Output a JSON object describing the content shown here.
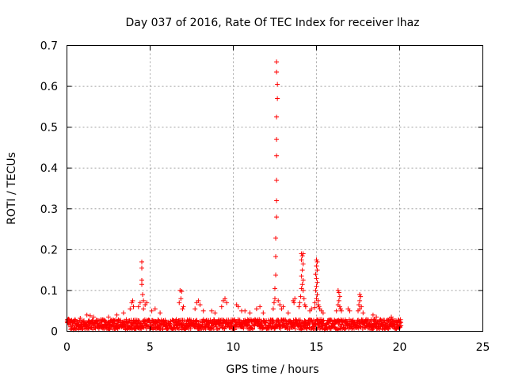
{
  "chart_data": {
    "type": "scatter",
    "title": "Day 037 of 2016, Rate Of TEC Index for receiver lhaz",
    "xlabel": "GPS time / hours",
    "ylabel": "ROTI / TECUs",
    "xlim": [
      0,
      25
    ],
    "ylim": [
      0,
      0.7
    ],
    "x_ticks": [
      "0",
      "5",
      "10",
      "15",
      "20",
      "25"
    ],
    "y_ticks": [
      "0",
      "0.1",
      "0.2",
      "0.3",
      "0.4",
      "0.5",
      "0.6",
      "0.7"
    ],
    "grid": true,
    "marker": "+",
    "color": "#ff0000",
    "background_band": {
      "x_range": [
        0,
        20.1
      ],
      "y_min": 0,
      "y_typical": 0.025,
      "description": "dense continuous band of points between 0 and about 0.03 TECUs"
    },
    "points": [
      {
        "x": 4.5,
        "y": 0.17
      },
      {
        "x": 4.5,
        "y": 0.155
      },
      {
        "x": 4.5,
        "y": 0.125
      },
      {
        "x": 4.5,
        "y": 0.115
      },
      {
        "x": 4.55,
        "y": 0.09
      },
      {
        "x": 4.6,
        "y": 0.075
      },
      {
        "x": 4.4,
        "y": 0.07
      },
      {
        "x": 4.7,
        "y": 0.065
      },
      {
        "x": 4.8,
        "y": 0.07
      },
      {
        "x": 4.3,
        "y": 0.06
      },
      {
        "x": 4.6,
        "y": 0.055
      },
      {
        "x": 6.8,
        "y": 0.1
      },
      {
        "x": 6.9,
        "y": 0.098
      },
      {
        "x": 6.85,
        "y": 0.08
      },
      {
        "x": 6.75,
        "y": 0.07
      },
      {
        "x": 7.0,
        "y": 0.06
      },
      {
        "x": 6.95,
        "y": 0.055
      },
      {
        "x": 3.9,
        "y": 0.07
      },
      {
        "x": 3.95,
        "y": 0.075
      },
      {
        "x": 4.0,
        "y": 0.06
      },
      {
        "x": 3.8,
        "y": 0.055
      },
      {
        "x": 5.1,
        "y": 0.05
      },
      {
        "x": 5.3,
        "y": 0.055
      },
      {
        "x": 5.6,
        "y": 0.045
      },
      {
        "x": 1.2,
        "y": 0.04
      },
      {
        "x": 1.4,
        "y": 0.038
      },
      {
        "x": 1.6,
        "y": 0.035
      },
      {
        "x": 0.1,
        "y": 0.03
      },
      {
        "x": 0.8,
        "y": 0.032
      },
      {
        "x": 2.5,
        "y": 0.035
      },
      {
        "x": 3.0,
        "y": 0.04
      },
      {
        "x": 3.4,
        "y": 0.045
      },
      {
        "x": 7.8,
        "y": 0.07
      },
      {
        "x": 7.9,
        "y": 0.075
      },
      {
        "x": 8.0,
        "y": 0.065
      },
      {
        "x": 7.7,
        "y": 0.055
      },
      {
        "x": 8.2,
        "y": 0.05
      },
      {
        "x": 8.7,
        "y": 0.05
      },
      {
        "x": 8.9,
        "y": 0.045
      },
      {
        "x": 9.4,
        "y": 0.075
      },
      {
        "x": 9.5,
        "y": 0.08
      },
      {
        "x": 9.6,
        "y": 0.07
      },
      {
        "x": 9.3,
        "y": 0.06
      },
      {
        "x": 10.2,
        "y": 0.065
      },
      {
        "x": 10.3,
        "y": 0.06
      },
      {
        "x": 10.5,
        "y": 0.05
      },
      {
        "x": 10.7,
        "y": 0.05
      },
      {
        "x": 11.0,
        "y": 0.045
      },
      {
        "x": 11.4,
        "y": 0.055
      },
      {
        "x": 11.6,
        "y": 0.06
      },
      {
        "x": 11.8,
        "y": 0.045
      },
      {
        "x": 12.6,
        "y": 0.66
      },
      {
        "x": 12.6,
        "y": 0.635
      },
      {
        "x": 12.65,
        "y": 0.605
      },
      {
        "x": 12.65,
        "y": 0.57
      },
      {
        "x": 12.6,
        "y": 0.525
      },
      {
        "x": 12.6,
        "y": 0.47
      },
      {
        "x": 12.6,
        "y": 0.43
      },
      {
        "x": 12.6,
        "y": 0.37
      },
      {
        "x": 12.6,
        "y": 0.32
      },
      {
        "x": 12.6,
        "y": 0.28
      },
      {
        "x": 12.55,
        "y": 0.228
      },
      {
        "x": 12.55,
        "y": 0.183
      },
      {
        "x": 12.55,
        "y": 0.138
      },
      {
        "x": 12.5,
        "y": 0.105
      },
      {
        "x": 12.5,
        "y": 0.08
      },
      {
        "x": 12.45,
        "y": 0.07
      },
      {
        "x": 12.7,
        "y": 0.075
      },
      {
        "x": 12.8,
        "y": 0.065
      },
      {
        "x": 12.4,
        "y": 0.055
      },
      {
        "x": 12.9,
        "y": 0.055
      },
      {
        "x": 13.0,
        "y": 0.06
      },
      {
        "x": 13.3,
        "y": 0.045
      },
      {
        "x": 13.6,
        "y": 0.075
      },
      {
        "x": 13.7,
        "y": 0.08
      },
      {
        "x": 13.65,
        "y": 0.07
      },
      {
        "x": 14.1,
        "y": 0.19
      },
      {
        "x": 14.15,
        "y": 0.185
      },
      {
        "x": 14.2,
        "y": 0.19
      },
      {
        "x": 14.1,
        "y": 0.175
      },
      {
        "x": 14.2,
        "y": 0.165
      },
      {
        "x": 14.15,
        "y": 0.15
      },
      {
        "x": 14.1,
        "y": 0.135
      },
      {
        "x": 14.2,
        "y": 0.125
      },
      {
        "x": 14.15,
        "y": 0.115
      },
      {
        "x": 14.1,
        "y": 0.105
      },
      {
        "x": 14.2,
        "y": 0.1
      },
      {
        "x": 14.05,
        "y": 0.085
      },
      {
        "x": 14.25,
        "y": 0.08
      },
      {
        "x": 14.0,
        "y": 0.07
      },
      {
        "x": 14.3,
        "y": 0.065
      },
      {
        "x": 14.35,
        "y": 0.06
      },
      {
        "x": 13.95,
        "y": 0.06
      },
      {
        "x": 14.6,
        "y": 0.05
      },
      {
        "x": 14.7,
        "y": 0.055
      },
      {
        "x": 15.0,
        "y": 0.175
      },
      {
        "x": 15.05,
        "y": 0.17
      },
      {
        "x": 15.0,
        "y": 0.16
      },
      {
        "x": 15.05,
        "y": 0.15
      },
      {
        "x": 14.95,
        "y": 0.14
      },
      {
        "x": 15.0,
        "y": 0.13
      },
      {
        "x": 15.05,
        "y": 0.12
      },
      {
        "x": 15.0,
        "y": 0.11
      },
      {
        "x": 14.95,
        "y": 0.1
      },
      {
        "x": 15.05,
        "y": 0.09
      },
      {
        "x": 15.0,
        "y": 0.08
      },
      {
        "x": 15.1,
        "y": 0.075
      },
      {
        "x": 14.9,
        "y": 0.07
      },
      {
        "x": 15.1,
        "y": 0.065
      },
      {
        "x": 15.15,
        "y": 0.06
      },
      {
        "x": 14.9,
        "y": 0.058
      },
      {
        "x": 15.2,
        "y": 0.055
      },
      {
        "x": 15.3,
        "y": 0.05
      },
      {
        "x": 15.4,
        "y": 0.045
      },
      {
        "x": 16.3,
        "y": 0.1
      },
      {
        "x": 16.35,
        "y": 0.095
      },
      {
        "x": 16.4,
        "y": 0.085
      },
      {
        "x": 16.35,
        "y": 0.075
      },
      {
        "x": 16.3,
        "y": 0.065
      },
      {
        "x": 16.4,
        "y": 0.06
      },
      {
        "x": 16.45,
        "y": 0.055
      },
      {
        "x": 16.5,
        "y": 0.05
      },
      {
        "x": 16.2,
        "y": 0.05
      },
      {
        "x": 16.9,
        "y": 0.055
      },
      {
        "x": 17.0,
        "y": 0.05
      },
      {
        "x": 17.6,
        "y": 0.09
      },
      {
        "x": 17.65,
        "y": 0.085
      },
      {
        "x": 17.6,
        "y": 0.075
      },
      {
        "x": 17.55,
        "y": 0.065
      },
      {
        "x": 17.7,
        "y": 0.06
      },
      {
        "x": 17.6,
        "y": 0.055
      },
      {
        "x": 17.5,
        "y": 0.05
      },
      {
        "x": 17.8,
        "y": 0.045
      },
      {
        "x": 18.4,
        "y": 0.04
      },
      {
        "x": 18.6,
        "y": 0.035
      },
      {
        "x": 19.5,
        "y": 0.035
      },
      {
        "x": 19.55,
        "y": 0.03
      },
      {
        "x": 19.4,
        "y": 0.028
      },
      {
        "x": 19.6,
        "y": 0.025
      },
      {
        "x": 19.9,
        "y": 0.025
      },
      {
        "x": 20.0,
        "y": 0.02
      }
    ]
  }
}
